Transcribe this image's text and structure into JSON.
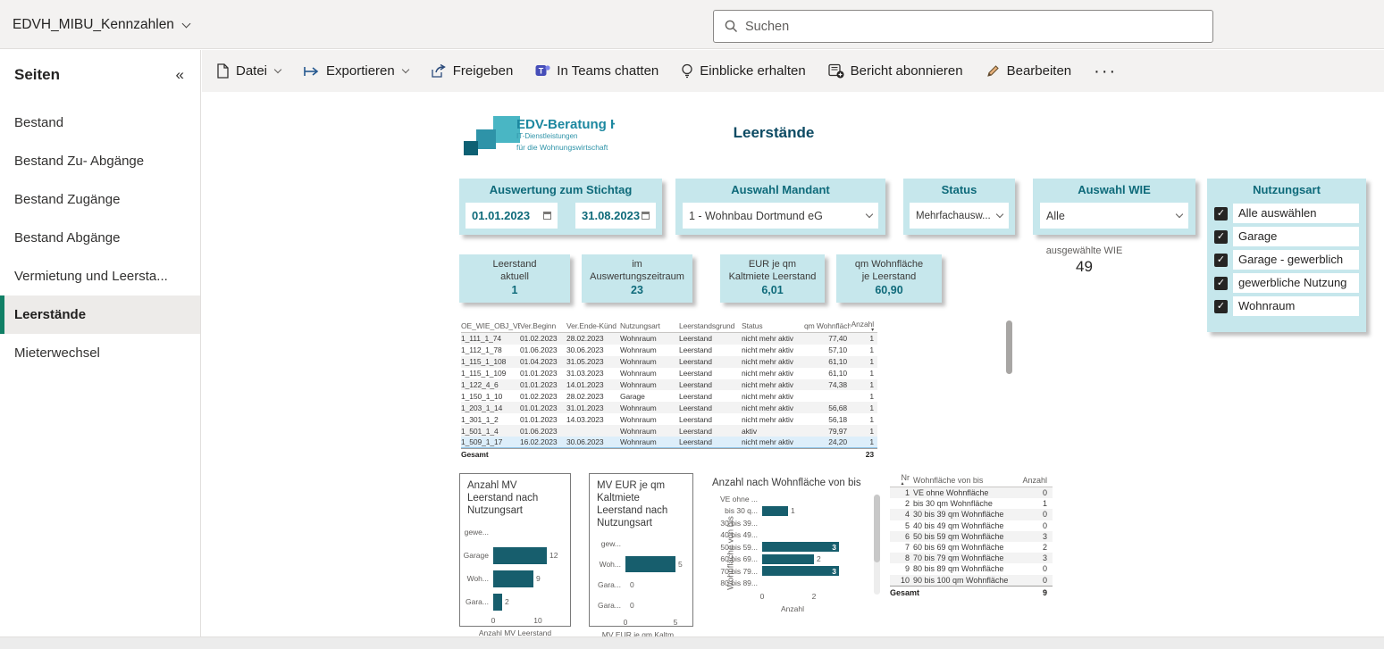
{
  "topbar": {
    "report_name": "EDVH_MIBU_Kennzahlen",
    "search_placeholder": "Suchen"
  },
  "sidebar": {
    "title": "Seiten",
    "collapse_icon": "«",
    "items": [
      {
        "label": "Bestand",
        "active": false
      },
      {
        "label": "Bestand Zu- Abgänge",
        "active": false
      },
      {
        "label": "Bestand Zugänge",
        "active": false
      },
      {
        "label": "Bestand Abgänge",
        "active": false
      },
      {
        "label": "Vermietung und Leersta...",
        "active": false
      },
      {
        "label": "Leerstände",
        "active": true
      },
      {
        "label": "Mieterwechsel",
        "active": false
      }
    ]
  },
  "toolbar": {
    "items": [
      {
        "label": "Datei"
      },
      {
        "label": "Exportieren"
      },
      {
        "label": "Freigeben"
      },
      {
        "label": "In Teams chatten"
      },
      {
        "label": "Einblicke erhalten"
      },
      {
        "label": "Bericht abonnieren"
      },
      {
        "label": "Bearbeiten"
      },
      {
        "label": "···"
      }
    ]
  },
  "logo": {
    "line1": "EDV-Beratung Ha",
    "line2": "IT-Dienstleistungen",
    "line3": "für die Wohnungswirtschaft"
  },
  "report": {
    "title": "Leerstände",
    "slicers": {
      "stichtag": {
        "title": "Auswertung zum Stichtag",
        "date_from": "01.01.2023",
        "date_to": "31.08.2023"
      },
      "mandant": {
        "title": "Auswahl Mandant",
        "value": "1 - Wohnbau Dortmund eG"
      },
      "status": {
        "title": "Status",
        "value": "Mehrfachausw..."
      },
      "wie": {
        "title": "Auswahl WIE",
        "value": "Alle",
        "info_label": "ausgewählte WIE",
        "info_value": "49"
      },
      "nutzungsart": {
        "title": "Nutzungsart",
        "options": [
          {
            "label": "Alle auswählen",
            "checked": true
          },
          {
            "label": "Garage",
            "checked": true
          },
          {
            "label": "Garage - gewerblich",
            "checked": true
          },
          {
            "label": "gewerbliche Nutzung",
            "checked": true
          },
          {
            "label": "Wohnraum",
            "checked": true
          }
        ]
      }
    },
    "kpis": [
      {
        "label1": "Leerstand",
        "label2": "aktuell",
        "value": "1"
      },
      {
        "label1": "im",
        "label2": "Auswertungszeitraum",
        "value": "23"
      },
      {
        "label1": "EUR je qm",
        "label2": "Kaltmiete Leerstand",
        "value": "6,01"
      },
      {
        "label1": "qm Wohnfläche",
        "label2": "je Leerstand",
        "value": "60,90"
      }
    ],
    "main_table": {
      "columns": [
        "OE_WIE_OBJ_VE",
        "Ver.Beginn",
        "Ver.Ende-Künd",
        "Nutzungsart",
        "Leerstandsgrund",
        "Status",
        "qm Wohnfläche",
        "Anzahl"
      ],
      "sorted_column": "Anzahl",
      "rows": [
        [
          "1_111_1_74",
          "01.02.2023",
          "28.02.2023",
          "Wohnraum",
          "Leerstand",
          "nicht mehr aktiv",
          "77,40",
          "1"
        ],
        [
          "1_112_1_78",
          "01.06.2023",
          "30.06.2023",
          "Wohnraum",
          "Leerstand",
          "nicht mehr aktiv",
          "57,10",
          "1"
        ],
        [
          "1_115_1_108",
          "01.04.2023",
          "31.05.2023",
          "Wohnraum",
          "Leerstand",
          "nicht mehr aktiv",
          "61,10",
          "1"
        ],
        [
          "1_115_1_109",
          "01.01.2023",
          "31.03.2023",
          "Wohnraum",
          "Leerstand",
          "nicht mehr aktiv",
          "61,10",
          "1"
        ],
        [
          "1_122_4_6",
          "01.01.2023",
          "14.01.2023",
          "Wohnraum",
          "Leerstand",
          "nicht mehr aktiv",
          "74,38",
          "1"
        ],
        [
          "1_150_1_10",
          "01.02.2023",
          "28.02.2023",
          "Garage",
          "Leerstand",
          "nicht mehr aktiv",
          "",
          "1"
        ],
        [
          "1_203_1_14",
          "01.01.2023",
          "31.01.2023",
          "Wohnraum",
          "Leerstand",
          "nicht mehr aktiv",
          "56,68",
          "1"
        ],
        [
          "1_301_1_2",
          "01.01.2023",
          "14.03.2023",
          "Wohnraum",
          "Leerstand",
          "nicht mehr aktiv",
          "56,18",
          "1"
        ],
        [
          "1_501_1_4",
          "01.06.2023",
          "",
          "Wohnraum",
          "Leerstand",
          "aktiv",
          "79,97",
          "1"
        ],
        [
          "1_509_1_17",
          "16.02.2023",
          "30.06.2023",
          "Wohnraum",
          "Leerstand",
          "nicht mehr aktiv",
          "24,20",
          "1"
        ]
      ],
      "total_label": "Gesamt",
      "total_value": "23"
    },
    "summary_table": {
      "columns": [
        "Nr",
        "Wohnfläche von bis",
        "Anzahl"
      ],
      "sorted_column": "Nr",
      "rows": [
        [
          "1",
          "VE ohne Wohnfläche",
          "0"
        ],
        [
          "2",
          "bis 30 qm Wohnfläche",
          "1"
        ],
        [
          "4",
          "30 bis 39 qm Wohnfläche",
          "0"
        ],
        [
          "5",
          "40 bis 49 qm Wohnfläche",
          "0"
        ],
        [
          "6",
          "50 bis 59 qm Wohnfläche",
          "3"
        ],
        [
          "7",
          "60 bis 69 qm Wohnfläche",
          "2"
        ],
        [
          "8",
          "70 bis 79 qm Wohnfläche",
          "3"
        ],
        [
          "9",
          "80 bis 89 qm Wohnfläche",
          "0"
        ],
        [
          "10",
          "90 bis 100 qm Wohnfläche",
          "0"
        ]
      ],
      "total_label": "Gesamt",
      "total_value": "9"
    }
  },
  "chart_data": [
    {
      "id": "mv-leerstand",
      "type": "bar",
      "orientation": "horizontal",
      "title": "Anzahl MV Leerstand nach Nutzungsart",
      "xlabel": "Anzahl MV Leerstand",
      "categories": [
        "gewe...",
        "Garage",
        "Woh...",
        "Gara..."
      ],
      "values": [
        null,
        12,
        9,
        2
      ],
      "ticks": [
        0,
        10
      ],
      "xmax": 13.2,
      "bar_color": "#175e6d"
    },
    {
      "id": "mv-eur",
      "type": "bar",
      "orientation": "horizontal",
      "title": "MV EUR je qm Kaltmiete Leerstand nach Nutzungsart",
      "xlabel": "MV EUR je qm Kaltm...",
      "categories": [
        "gew...",
        "Woh...",
        "Gara...",
        "Gara..."
      ],
      "values": [
        null,
        5,
        0,
        0
      ],
      "ticks": [
        0,
        5
      ],
      "xmax": 5.3,
      "bar_color": "#175e6d"
    },
    {
      "id": "wohnflaeche",
      "type": "bar",
      "orientation": "horizontal",
      "title": "Anzahl nach Wohnfläche von bis",
      "xlabel": "Anzahl",
      "ylabel": "Wohnfläche von bis",
      "categories": [
        "VE ohne ...",
        "bis 30 q...",
        "30 bis 39...",
        "40 bis 49...",
        "50 bis 59...",
        "60 bis 69...",
        "70 bis 79...",
        "80 bis 89..."
      ],
      "values": [
        null,
        1,
        null,
        null,
        3,
        2,
        3,
        null
      ],
      "ticks": [
        0,
        2
      ],
      "xmax": 3.2,
      "bar_color": "#175e6d",
      "inside_label_min": 3
    }
  ],
  "colors": {
    "accent_teal": "#175e6d",
    "slicer_bg": "#c6e7ec",
    "slicer_text": "#0e6a7a",
    "active_marker": "#118066",
    "teams_purple": "#464eb8"
  }
}
